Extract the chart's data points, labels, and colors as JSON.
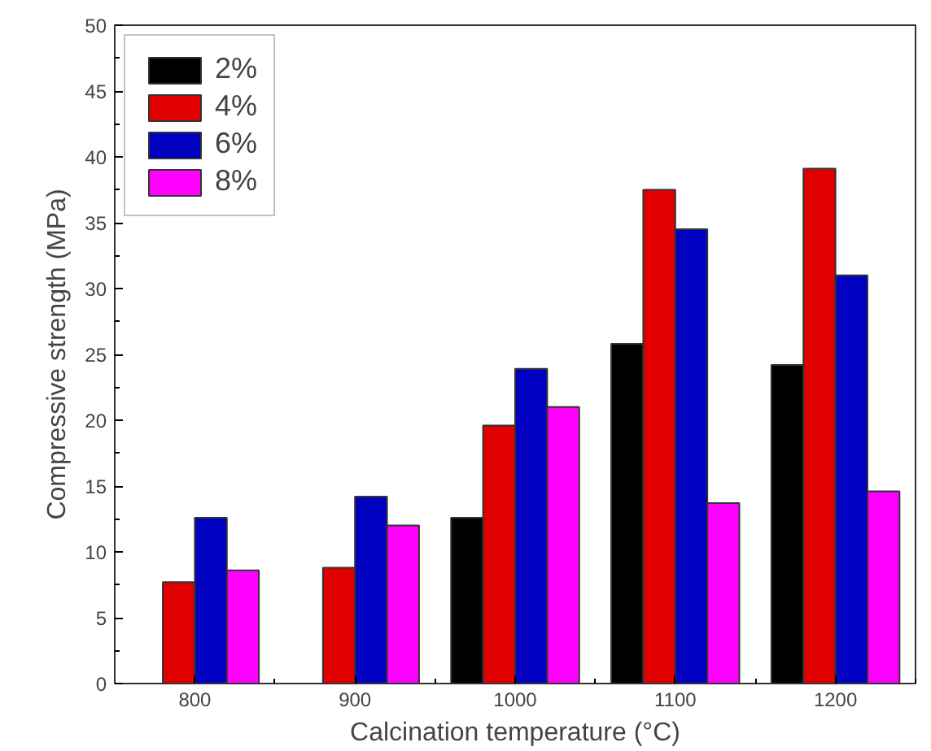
{
  "chart_data": {
    "type": "bar",
    "xlabel": "Calcination temperature (°C)",
    "ylabel": "Compressive strength (MPa)",
    "categories": [
      "800",
      "900",
      "1000",
      "1100",
      "1200"
    ],
    "series": [
      {
        "name": "2%",
        "color": "#000000",
        "values": [
          null,
          null,
          12.6,
          25.8,
          24.2
        ]
      },
      {
        "name": "4%",
        "color": "#e00000",
        "values": [
          7.7,
          8.8,
          19.6,
          37.5,
          39.1
        ]
      },
      {
        "name": "6%",
        "color": "#0000c0",
        "values": [
          12.6,
          14.2,
          23.9,
          34.5,
          31.0
        ]
      },
      {
        "name": "8%",
        "color": "#ff00ff",
        "values": [
          8.6,
          12.0,
          21.0,
          13.7,
          14.6
        ]
      }
    ],
    "ylim": [
      0,
      50
    ],
    "yticks": [
      0,
      5,
      10,
      15,
      20,
      25,
      30,
      35,
      40,
      45,
      50
    ],
    "grid": false,
    "legend": "top left"
  }
}
